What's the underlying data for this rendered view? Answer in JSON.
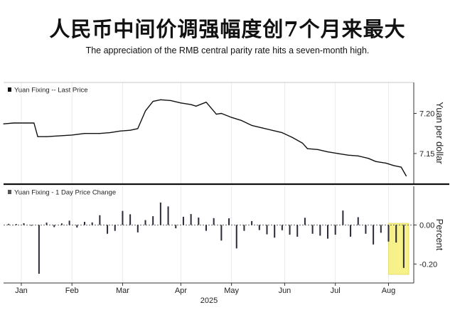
{
  "header": {
    "title": "人民币中间价调强幅度创7个月来最大",
    "subtitle": "The appreciation of the RMB central parity rate hits a seven-month high."
  },
  "chart_data": [
    {
      "type": "line",
      "legend": "Yuan Fixing -- Last Price",
      "ylabel": "Yuan per dollar",
      "yticks": [
        7.15,
        7.2
      ],
      "ytick_labels": [
        "7.15",
        "7.20"
      ],
      "ylim": [
        7.118,
        7.235
      ],
      "xlim": [
        0,
        160
      ],
      "grid": "vertical",
      "x": [
        0,
        4,
        8,
        12,
        13.5,
        17,
        22,
        27,
        32,
        38,
        42,
        46,
        50,
        53,
        56,
        59,
        62,
        66,
        70,
        74,
        76,
        80,
        84,
        86,
        90,
        94,
        98,
        102,
        106,
        110,
        114,
        118,
        120,
        124,
        128,
        132,
        136,
        140,
        144,
        147,
        151,
        154,
        157,
        159
      ],
      "values": [
        7.187,
        7.188,
        7.188,
        7.188,
        7.171,
        7.171,
        7.172,
        7.173,
        7.175,
        7.175,
        7.176,
        7.178,
        7.179,
        7.181,
        7.203,
        7.215,
        7.217,
        7.216,
        7.213,
        7.211,
        7.209,
        7.214,
        7.199,
        7.2,
        7.195,
        7.191,
        7.185,
        7.182,
        7.179,
        7.176,
        7.17,
        7.163,
        7.156,
        7.155,
        7.152,
        7.15,
        7.148,
        7.147,
        7.144,
        7.14,
        7.138,
        7.135,
        7.133,
        7.122
      ]
    },
    {
      "type": "bar",
      "legend": "Yuan Fixing - 1 Day Price Change",
      "ylabel": "Percent",
      "yticks": [
        0.0,
        -0.2
      ],
      "ytick_labels": [
        "0.00",
        "-0.20"
      ],
      "ylim": [
        -0.29,
        0.14
      ],
      "xlim": [
        0,
        160
      ],
      "grid": "vertical",
      "highlight_color": "#f7f18a",
      "x": [
        2,
        5,
        8,
        11,
        14,
        17,
        20,
        23,
        26,
        29,
        32,
        35,
        38,
        41,
        44,
        47,
        50,
        53,
        56,
        59,
        62,
        65,
        68,
        71,
        74,
        77,
        80,
        83,
        86,
        89,
        92,
        95,
        98,
        101,
        104,
        107,
        110,
        113,
        116,
        119,
        122,
        125,
        128,
        131,
        134,
        137,
        140,
        143,
        146,
        149,
        152,
        155,
        158
      ],
      "values": [
        0.006,
        0.005,
        0.009,
        -0.004,
        -0.25,
        0.012,
        -0.011,
        0.008,
        0.022,
        -0.013,
        0.016,
        0.013,
        0.05,
        -0.045,
        -0.03,
        0.072,
        0.055,
        -0.038,
        0.025,
        0.045,
        0.115,
        0.095,
        -0.017,
        0.042,
        0.056,
        0.038,
        -0.03,
        0.035,
        -0.08,
        0.034,
        -0.12,
        -0.03,
        0.02,
        -0.026,
        -0.048,
        -0.065,
        -0.027,
        -0.05,
        -0.06,
        0.037,
        -0.045,
        -0.055,
        -0.07,
        -0.05,
        0.074,
        -0.06,
        0.04,
        -0.045,
        -0.1,
        -0.04,
        -0.085,
        -0.09,
        -0.22
      ],
      "highlight_x": [
        152,
        160
      ]
    }
  ],
  "x_axis": {
    "months": [
      "Jan",
      "Feb",
      "Mar",
      "Apr",
      "May",
      "Jun",
      "Jul",
      "Aug"
    ],
    "month_positions": [
      7,
      27,
      47,
      70,
      90,
      111,
      131,
      152
    ],
    "year": "2025"
  }
}
